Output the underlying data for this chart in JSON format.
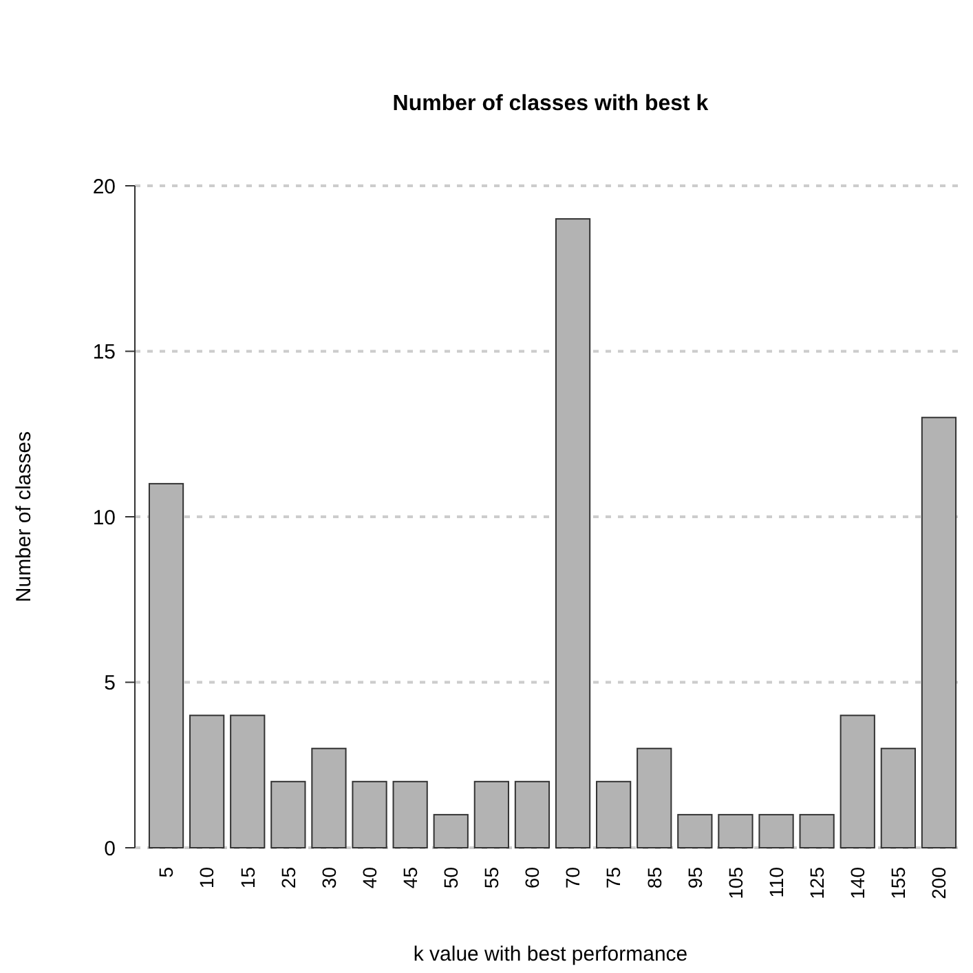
{
  "chart_data": {
    "type": "bar",
    "title": "Number of classes with best k",
    "xlabel": "k value with best performance",
    "ylabel": "Number of classes",
    "categories": [
      "5",
      "10",
      "15",
      "25",
      "30",
      "40",
      "45",
      "50",
      "55",
      "60",
      "70",
      "75",
      "85",
      "95",
      "105",
      "110",
      "125",
      "140",
      "155",
      "200"
    ],
    "values": [
      11,
      4,
      4,
      2,
      3,
      2,
      2,
      1,
      2,
      2,
      19,
      2,
      3,
      1,
      1,
      1,
      1,
      4,
      3,
      13
    ],
    "color": "#b3b3b3",
    "ylim": [
      0,
      20
    ],
    "yticks": [
      0,
      5,
      10,
      15,
      20
    ],
    "grid": "y"
  }
}
